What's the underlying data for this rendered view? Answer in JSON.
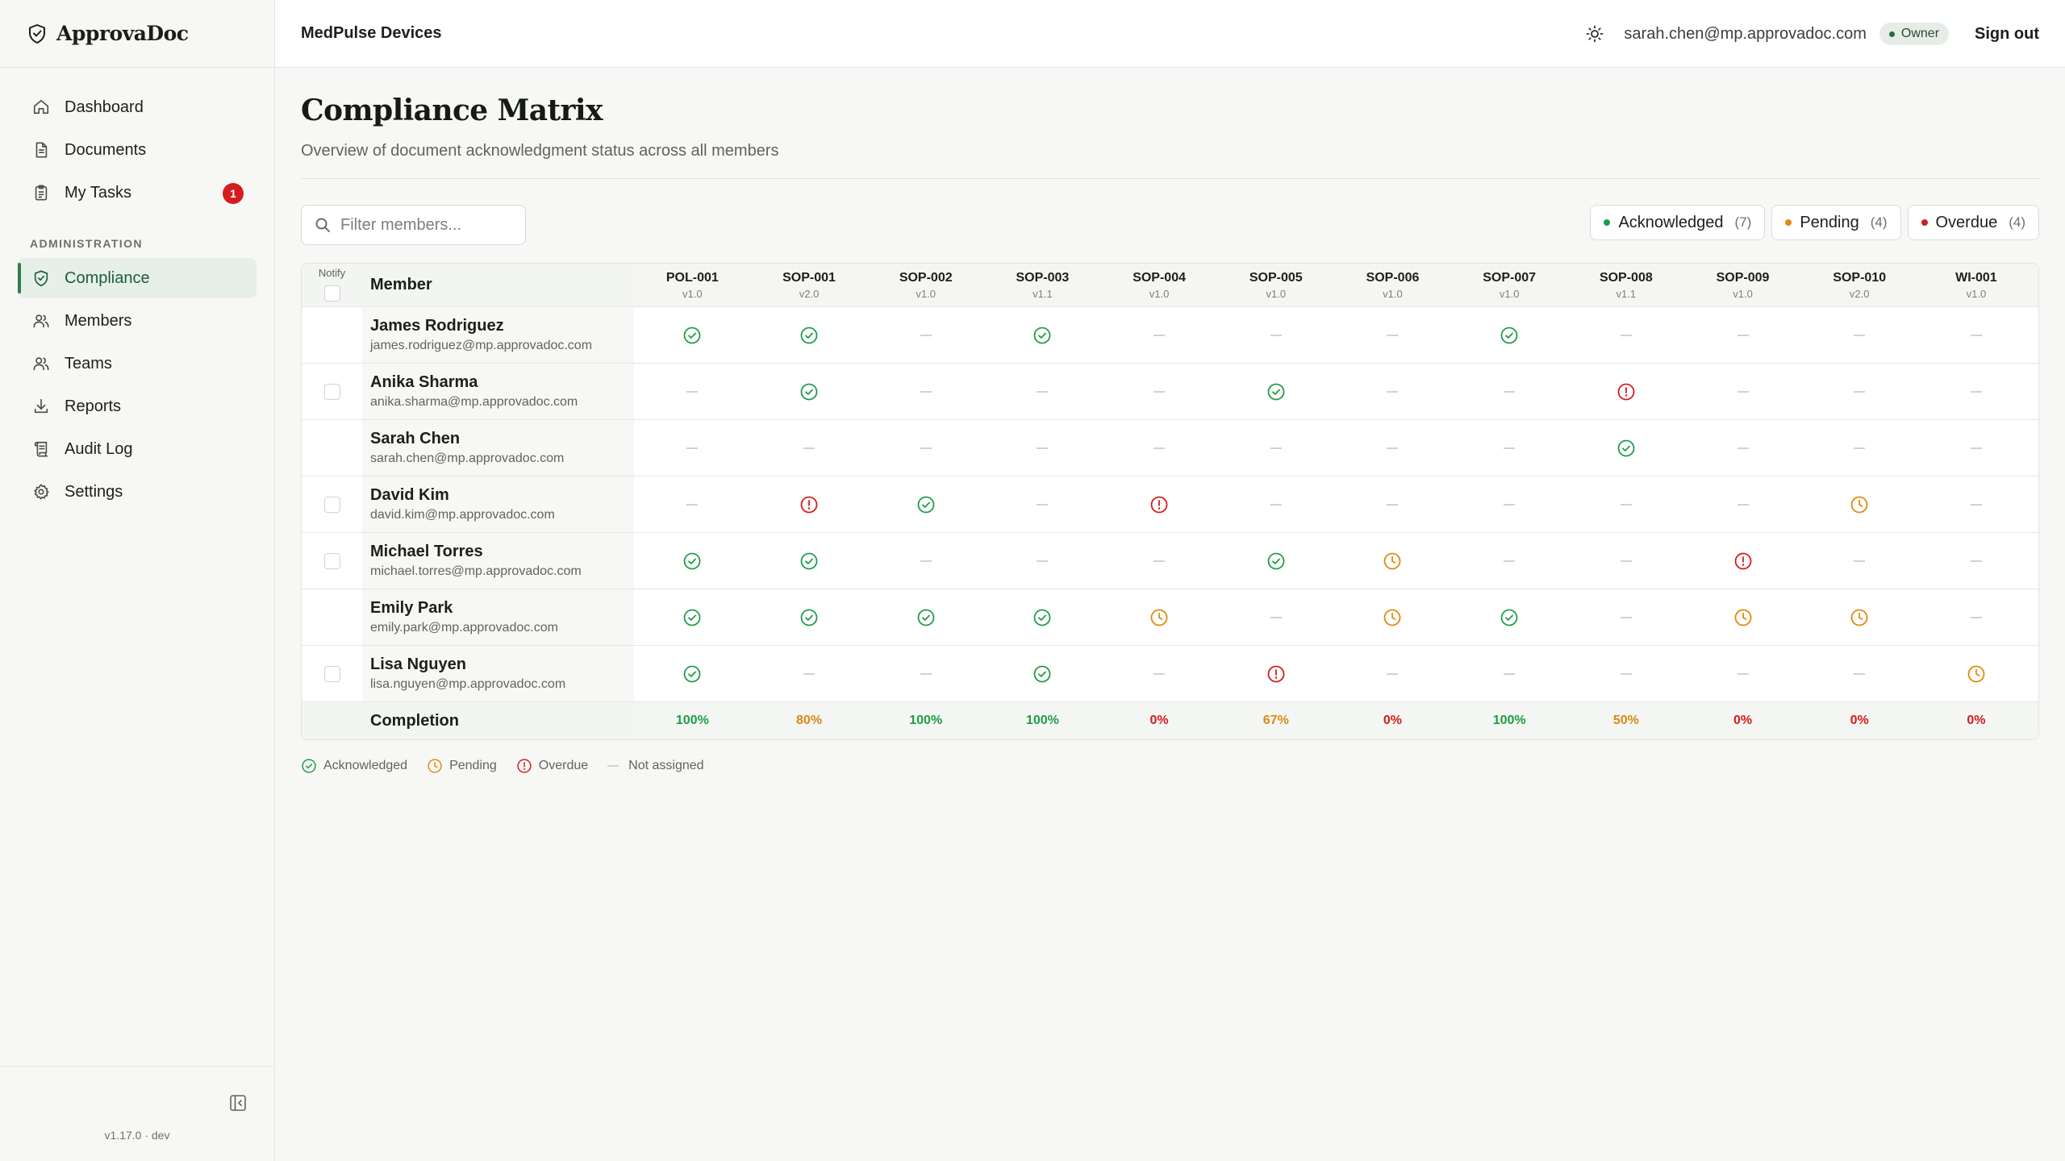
{
  "app": {
    "name": "ApprovaDoc",
    "version": "v1.17.0 · dev"
  },
  "sidebar": {
    "items": [
      {
        "key": "dashboard",
        "label": "Dashboard",
        "icon": "home-icon"
      },
      {
        "key": "documents",
        "label": "Documents",
        "icon": "document-icon"
      },
      {
        "key": "my-tasks",
        "label": "My Tasks",
        "icon": "clipboard-icon",
        "badge": "1"
      }
    ],
    "admin_section_label": "ADMINISTRATION",
    "admin_items": [
      {
        "key": "compliance",
        "label": "Compliance",
        "icon": "shield-check-icon",
        "active": true
      },
      {
        "key": "members",
        "label": "Members",
        "icon": "users-icon"
      },
      {
        "key": "teams",
        "label": "Teams",
        "icon": "users-icon"
      },
      {
        "key": "reports",
        "label": "Reports",
        "icon": "download-icon"
      },
      {
        "key": "audit-log",
        "label": "Audit Log",
        "icon": "scroll-icon"
      },
      {
        "key": "settings",
        "label": "Settings",
        "icon": "gear-icon"
      }
    ]
  },
  "header": {
    "org": "MedPulse Devices",
    "user_email": "sarah.chen@mp.approvadoc.com",
    "role": "Owner",
    "signout_label": "Sign out"
  },
  "page": {
    "title": "Compliance Matrix",
    "subtitle": "Overview of document acknowledgment status across all members"
  },
  "search": {
    "placeholder": "Filter members..."
  },
  "filters": [
    {
      "label": "Acknowledged",
      "count": "(7)",
      "color": "#1f9d48"
    },
    {
      "label": "Pending",
      "count": "(4)",
      "color": "#e08a0b"
    },
    {
      "label": "Overdue",
      "count": "(4)",
      "color": "#d51c1c"
    }
  ],
  "table": {
    "notify_label": "Notify",
    "member_header": "Member",
    "documents": [
      {
        "code": "POL-001",
        "version": "v1.0"
      },
      {
        "code": "SOP-001",
        "version": "v2.0"
      },
      {
        "code": "SOP-002",
        "version": "v1.0"
      },
      {
        "code": "SOP-003",
        "version": "v1.1"
      },
      {
        "code": "SOP-004",
        "version": "v1.0"
      },
      {
        "code": "SOP-005",
        "version": "v1.0"
      },
      {
        "code": "SOP-006",
        "version": "v1.0"
      },
      {
        "code": "SOP-007",
        "version": "v1.0"
      },
      {
        "code": "SOP-008",
        "version": "v1.1"
      },
      {
        "code": "SOP-009",
        "version": "v1.0"
      },
      {
        "code": "SOP-010",
        "version": "v2.0"
      },
      {
        "code": "WI-001",
        "version": "v1.0"
      }
    ],
    "members": [
      {
        "name": "James Rodriguez",
        "email": "james.rodriguez@mp.approvadoc.com",
        "checkbox": false,
        "statuses": [
          "ack",
          "ack",
          "none",
          "ack",
          "none",
          "none",
          "none",
          "ack",
          "none",
          "none",
          "none",
          "none"
        ]
      },
      {
        "name": "Anika Sharma",
        "email": "anika.sharma@mp.approvadoc.com",
        "checkbox": true,
        "statuses": [
          "none",
          "ack",
          "none",
          "none",
          "none",
          "ack",
          "none",
          "none",
          "overdue",
          "none",
          "none",
          "none"
        ]
      },
      {
        "name": "Sarah Chen",
        "email": "sarah.chen@mp.approvadoc.com",
        "checkbox": false,
        "statuses": [
          "none",
          "none",
          "none",
          "none",
          "none",
          "none",
          "none",
          "none",
          "ack",
          "none",
          "none",
          "none"
        ]
      },
      {
        "name": "David Kim",
        "email": "david.kim@mp.approvadoc.com",
        "checkbox": true,
        "statuses": [
          "none",
          "overdue",
          "ack",
          "none",
          "overdue",
          "none",
          "none",
          "none",
          "none",
          "none",
          "pending",
          "none"
        ]
      },
      {
        "name": "Michael Torres",
        "email": "michael.torres@mp.approvadoc.com",
        "checkbox": true,
        "statuses": [
          "ack",
          "ack",
          "none",
          "none",
          "none",
          "ack",
          "pending",
          "none",
          "none",
          "overdue",
          "none",
          "none"
        ]
      },
      {
        "name": "Emily Park",
        "email": "emily.park@mp.approvadoc.com",
        "checkbox": false,
        "statuses": [
          "ack",
          "ack",
          "ack",
          "ack",
          "pending",
          "none",
          "pending",
          "ack",
          "none",
          "pending",
          "pending",
          "none"
        ]
      },
      {
        "name": "Lisa Nguyen",
        "email": "lisa.nguyen@mp.approvadoc.com",
        "checkbox": true,
        "statuses": [
          "ack",
          "none",
          "none",
          "ack",
          "none",
          "overdue",
          "none",
          "none",
          "none",
          "none",
          "none",
          "pending"
        ]
      }
    ],
    "completion_label": "Completion",
    "completion": [
      "100%",
      "80%",
      "100%",
      "100%",
      "0%",
      "67%",
      "0%",
      "100%",
      "50%",
      "0%",
      "0%",
      "0%"
    ]
  },
  "legend": [
    {
      "key": "ack",
      "label": "Acknowledged"
    },
    {
      "key": "pending",
      "label": "Pending"
    },
    {
      "key": "overdue",
      "label": "Overdue"
    },
    {
      "key": "none",
      "label": "Not assigned"
    }
  ],
  "colors": {
    "ack": "#1f9d48",
    "pending": "#e08a0b",
    "overdue": "#d51c1c",
    "accent": "#2e7d4a"
  }
}
